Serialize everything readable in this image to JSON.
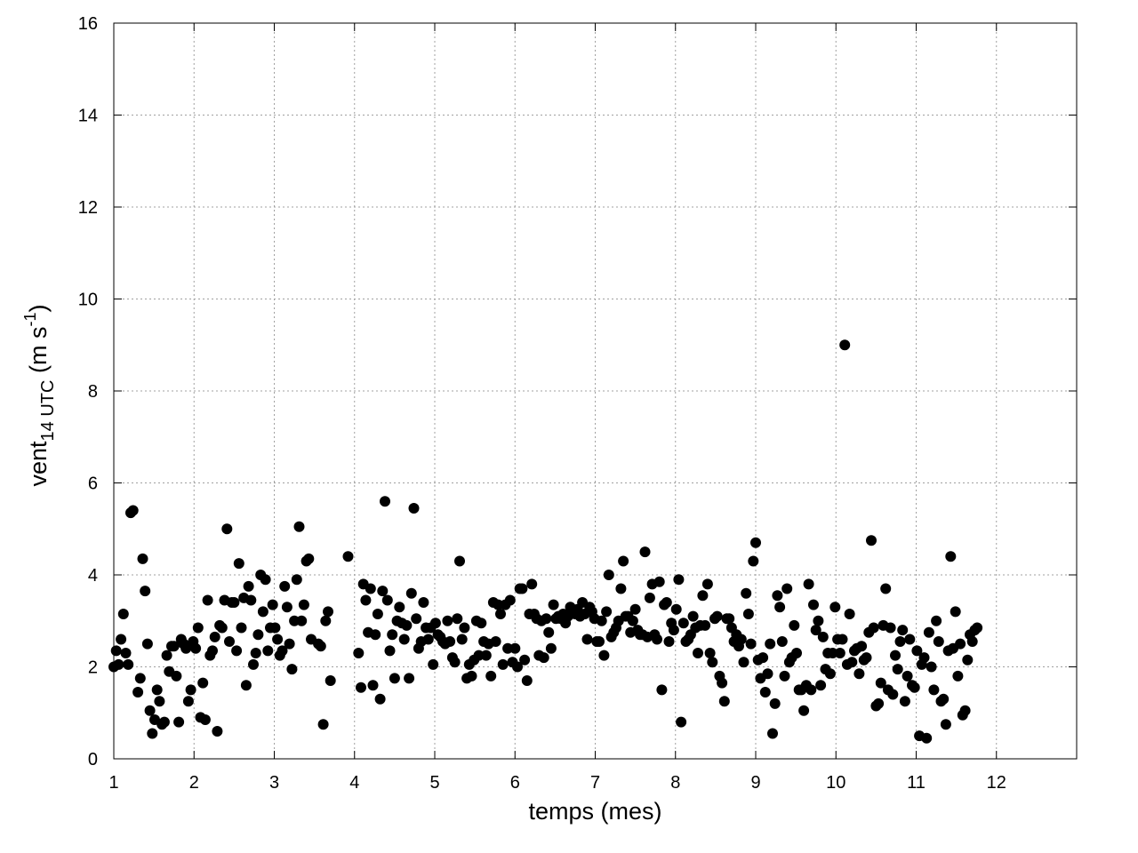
{
  "chart_data": {
    "type": "scatter",
    "title": "",
    "xlabel": "temps (mes)",
    "ylabel": {
      "base": "vent",
      "subscript": "14 UTC",
      "unit_open": " (m s",
      "unit_sup": "-1",
      "unit_close": ")"
    },
    "xlim": [
      1,
      13
    ],
    "ylim": [
      0,
      16
    ],
    "xticks": [
      1,
      2,
      3,
      4,
      5,
      6,
      7,
      8,
      9,
      10,
      11,
      12
    ],
    "yticks": [
      0,
      2,
      4,
      6,
      8,
      10,
      12,
      14,
      16
    ],
    "grid": true,
    "marker_color": "#000000",
    "points": [
      [
        1.0,
        2.0
      ],
      [
        1.03,
        2.35
      ],
      [
        1.06,
        2.05
      ],
      [
        1.09,
        2.6
      ],
      [
        1.12,
        3.15
      ],
      [
        1.15,
        2.3
      ],
      [
        1.18,
        2.05
      ],
      [
        1.21,
        5.35
      ],
      [
        1.24,
        5.4
      ],
      [
        1.3,
        1.45
      ],
      [
        1.33,
        1.75
      ],
      [
        1.36,
        4.35
      ],
      [
        1.39,
        3.65
      ],
      [
        1.42,
        2.5
      ],
      [
        1.45,
        1.05
      ],
      [
        1.48,
        0.55
      ],
      [
        1.51,
        0.85
      ],
      [
        1.54,
        1.5
      ],
      [
        1.57,
        1.25
      ],
      [
        1.6,
        0.75
      ],
      [
        1.63,
        0.8
      ],
      [
        1.66,
        2.25
      ],
      [
        1.69,
        1.9
      ],
      [
        1.72,
        2.45
      ],
      [
        1.75,
        2.45
      ],
      [
        1.78,
        1.8
      ],
      [
        1.81,
        0.8
      ],
      [
        1.84,
        2.6
      ],
      [
        1.87,
        2.5
      ],
      [
        1.9,
        2.4
      ],
      [
        1.93,
        1.25
      ],
      [
        1.96,
        1.5
      ],
      [
        1.99,
        2.55
      ],
      [
        2.02,
        2.4
      ],
      [
        2.05,
        2.85
      ],
      [
        2.08,
        0.9
      ],
      [
        2.11,
        1.65
      ],
      [
        2.14,
        0.85
      ],
      [
        2.17,
        3.45
      ],
      [
        2.2,
        2.25
      ],
      [
        2.23,
        2.35
      ],
      [
        2.26,
        2.65
      ],
      [
        2.29,
        0.6
      ],
      [
        2.32,
        2.9
      ],
      [
        2.35,
        2.85
      ],
      [
        2.38,
        3.45
      ],
      [
        2.41,
        5.0
      ],
      [
        2.44,
        2.55
      ],
      [
        2.47,
        3.4
      ],
      [
        2.5,
        3.4
      ],
      [
        2.53,
        2.35
      ],
      [
        2.56,
        4.25
      ],
      [
        2.59,
        2.85
      ],
      [
        2.62,
        3.5
      ],
      [
        2.65,
        1.6
      ],
      [
        2.68,
        3.75
      ],
      [
        2.71,
        3.45
      ],
      [
        2.74,
        2.05
      ],
      [
        2.77,
        2.3
      ],
      [
        2.8,
        2.7
      ],
      [
        2.83,
        4.0
      ],
      [
        2.86,
        3.2
      ],
      [
        2.89,
        3.9
      ],
      [
        2.92,
        2.35
      ],
      [
        2.95,
        2.85
      ],
      [
        2.98,
        3.35
      ],
      [
        3.01,
        2.85
      ],
      [
        3.04,
        2.6
      ],
      [
        3.07,
        2.25
      ],
      [
        3.1,
        2.35
      ],
      [
        3.13,
        3.75
      ],
      [
        3.16,
        3.3
      ],
      [
        3.19,
        2.5
      ],
      [
        3.22,
        1.95
      ],
      [
        3.25,
        3.0
      ],
      [
        3.28,
        3.9
      ],
      [
        3.31,
        5.05
      ],
      [
        3.34,
        3.0
      ],
      [
        3.37,
        3.35
      ],
      [
        3.4,
        4.3
      ],
      [
        3.43,
        4.35
      ],
      [
        3.46,
        2.6
      ],
      [
        3.55,
        2.5
      ],
      [
        3.58,
        2.45
      ],
      [
        3.61,
        0.75
      ],
      [
        3.64,
        3.0
      ],
      [
        3.67,
        3.2
      ],
      [
        3.7,
        1.7
      ],
      [
        3.92,
        4.4
      ],
      [
        4.05,
        2.3
      ],
      [
        4.08,
        1.55
      ],
      [
        4.11,
        3.8
      ],
      [
        4.14,
        3.45
      ],
      [
        4.17,
        2.75
      ],
      [
        4.2,
        3.7
      ],
      [
        4.23,
        1.6
      ],
      [
        4.26,
        2.7
      ],
      [
        4.29,
        3.15
      ],
      [
        4.32,
        1.3
      ],
      [
        4.35,
        3.65
      ],
      [
        4.38,
        5.6
      ],
      [
        4.41,
        3.45
      ],
      [
        4.44,
        2.35
      ],
      [
        4.47,
        2.7
      ],
      [
        4.5,
        1.75
      ],
      [
        4.53,
        3.0
      ],
      [
        4.56,
        3.3
      ],
      [
        4.59,
        2.95
      ],
      [
        4.62,
        2.6
      ],
      [
        4.65,
        2.9
      ],
      [
        4.68,
        1.75
      ],
      [
        4.71,
        3.6
      ],
      [
        4.74,
        5.45
      ],
      [
        4.77,
        3.05
      ],
      [
        4.8,
        2.4
      ],
      [
        4.83,
        2.55
      ],
      [
        4.86,
        3.4
      ],
      [
        4.89,
        2.85
      ],
      [
        4.92,
        2.6
      ],
      [
        4.95,
        2.85
      ],
      [
        4.98,
        2.05
      ],
      [
        5.01,
        2.95
      ],
      [
        5.04,
        2.7
      ],
      [
        5.07,
        2.65
      ],
      [
        5.1,
        2.55
      ],
      [
        5.13,
        2.5
      ],
      [
        5.16,
        3.0
      ],
      [
        5.19,
        2.55
      ],
      [
        5.22,
        2.2
      ],
      [
        5.25,
        2.1
      ],
      [
        5.28,
        3.05
      ],
      [
        5.31,
        4.3
      ],
      [
        5.34,
        2.6
      ],
      [
        5.37,
        2.85
      ],
      [
        5.4,
        1.75
      ],
      [
        5.43,
        2.05
      ],
      [
        5.46,
        1.8
      ],
      [
        5.49,
        2.15
      ],
      [
        5.52,
        3.0
      ],
      [
        5.55,
        2.25
      ],
      [
        5.58,
        2.95
      ],
      [
        5.61,
        2.55
      ],
      [
        5.64,
        2.25
      ],
      [
        5.67,
        2.5
      ],
      [
        5.7,
        1.8
      ],
      [
        5.73,
        3.4
      ],
      [
        5.76,
        2.55
      ],
      [
        5.79,
        3.35
      ],
      [
        5.82,
        3.15
      ],
      [
        5.85,
        2.05
      ],
      [
        5.88,
        3.35
      ],
      [
        5.91,
        2.4
      ],
      [
        5.94,
        3.45
      ],
      [
        5.97,
        2.1
      ],
      [
        6.0,
        2.4
      ],
      [
        6.03,
        2.0
      ],
      [
        6.06,
        3.7
      ],
      [
        6.09,
        3.7
      ],
      [
        6.12,
        2.15
      ],
      [
        6.15,
        1.7
      ],
      [
        6.18,
        3.15
      ],
      [
        6.21,
        3.8
      ],
      [
        6.24,
        3.15
      ],
      [
        6.27,
        3.05
      ],
      [
        6.3,
        2.25
      ],
      [
        6.33,
        3.0
      ],
      [
        6.36,
        2.2
      ],
      [
        6.39,
        3.05
      ],
      [
        6.42,
        2.75
      ],
      [
        6.45,
        2.4
      ],
      [
        6.48,
        3.35
      ],
      [
        6.51,
        3.05
      ],
      [
        6.54,
        3.1
      ],
      [
        6.57,
        3.05
      ],
      [
        6.6,
        3.15
      ],
      [
        6.63,
        2.95
      ],
      [
        6.66,
        3.1
      ],
      [
        6.69,
        3.3
      ],
      [
        6.72,
        3.25
      ],
      [
        6.75,
        3.15
      ],
      [
        6.78,
        3.25
      ],
      [
        6.81,
        3.1
      ],
      [
        6.84,
        3.4
      ],
      [
        6.87,
        3.15
      ],
      [
        6.9,
        2.6
      ],
      [
        6.93,
        3.3
      ],
      [
        6.96,
        3.2
      ],
      [
        6.99,
        3.05
      ],
      [
        7.02,
        2.55
      ],
      [
        7.05,
        2.55
      ],
      [
        7.08,
        3.0
      ],
      [
        7.11,
        2.25
      ],
      [
        7.14,
        3.2
      ],
      [
        7.17,
        4.0
      ],
      [
        7.2,
        2.65
      ],
      [
        7.23,
        2.75
      ],
      [
        7.26,
        2.85
      ],
      [
        7.29,
        3.0
      ],
      [
        7.32,
        3.7
      ],
      [
        7.35,
        4.3
      ],
      [
        7.38,
        3.1
      ],
      [
        7.41,
        3.1
      ],
      [
        7.44,
        2.75
      ],
      [
        7.47,
        3.0
      ],
      [
        7.5,
        3.25
      ],
      [
        7.53,
        2.8
      ],
      [
        7.56,
        2.7
      ],
      [
        7.59,
        2.7
      ],
      [
        7.62,
        4.5
      ],
      [
        7.65,
        2.65
      ],
      [
        7.68,
        3.5
      ],
      [
        7.71,
        3.8
      ],
      [
        7.74,
        2.7
      ],
      [
        7.77,
        2.6
      ],
      [
        7.8,
        3.85
      ],
      [
        7.83,
        1.5
      ],
      [
        7.86,
        3.35
      ],
      [
        7.89,
        3.4
      ],
      [
        7.92,
        2.55
      ],
      [
        7.95,
        2.95
      ],
      [
        7.98,
        2.8
      ],
      [
        8.01,
        3.25
      ],
      [
        8.04,
        3.9
      ],
      [
        8.07,
        0.8
      ],
      [
        8.1,
        2.95
      ],
      [
        8.13,
        2.55
      ],
      [
        8.16,
        2.6
      ],
      [
        8.19,
        2.7
      ],
      [
        8.22,
        3.1
      ],
      [
        8.25,
        2.85
      ],
      [
        8.28,
        2.3
      ],
      [
        8.31,
        2.9
      ],
      [
        8.34,
        3.55
      ],
      [
        8.37,
        2.9
      ],
      [
        8.4,
        3.8
      ],
      [
        8.43,
        2.3
      ],
      [
        8.46,
        2.1
      ],
      [
        8.49,
        3.05
      ],
      [
        8.52,
        3.1
      ],
      [
        8.55,
        1.8
      ],
      [
        8.58,
        1.65
      ],
      [
        8.61,
        1.25
      ],
      [
        8.64,
        3.05
      ],
      [
        8.67,
        3.05
      ],
      [
        8.7,
        2.85
      ],
      [
        8.73,
        2.55
      ],
      [
        8.76,
        2.7
      ],
      [
        8.79,
        2.45
      ],
      [
        8.82,
        2.6
      ],
      [
        8.85,
        2.1
      ],
      [
        8.88,
        3.6
      ],
      [
        8.91,
        3.15
      ],
      [
        8.94,
        2.5
      ],
      [
        8.97,
        4.3
      ],
      [
        9.0,
        4.7
      ],
      [
        9.03,
        2.15
      ],
      [
        9.06,
        1.75
      ],
      [
        9.09,
        2.2
      ],
      [
        9.12,
        1.45
      ],
      [
        9.15,
        1.85
      ],
      [
        9.18,
        2.5
      ],
      [
        9.21,
        0.55
      ],
      [
        9.24,
        1.2
      ],
      [
        9.27,
        3.55
      ],
      [
        9.3,
        3.3
      ],
      [
        9.33,
        2.55
      ],
      [
        9.36,
        1.8
      ],
      [
        9.39,
        3.7
      ],
      [
        9.42,
        2.1
      ],
      [
        9.45,
        2.2
      ],
      [
        9.48,
        2.9
      ],
      [
        9.51,
        2.3
      ],
      [
        9.54,
        1.5
      ],
      [
        9.57,
        1.5
      ],
      [
        9.6,
        1.05
      ],
      [
        9.63,
        1.6
      ],
      [
        9.66,
        3.8
      ],
      [
        9.69,
        1.5
      ],
      [
        9.72,
        3.35
      ],
      [
        9.75,
        2.8
      ],
      [
        9.78,
        3.0
      ],
      [
        9.81,
        1.6
      ],
      [
        9.84,
        2.65
      ],
      [
        9.87,
        1.95
      ],
      [
        9.9,
        2.3
      ],
      [
        9.93,
        1.85
      ],
      [
        9.96,
        2.3
      ],
      [
        9.99,
        3.3
      ],
      [
        10.02,
        2.6
      ],
      [
        10.05,
        2.3
      ],
      [
        10.08,
        2.6
      ],
      [
        10.11,
        9.0
      ],
      [
        10.14,
        2.05
      ],
      [
        10.17,
        3.15
      ],
      [
        10.2,
        2.1
      ],
      [
        10.23,
        2.35
      ],
      [
        10.26,
        2.4
      ],
      [
        10.29,
        1.85
      ],
      [
        10.32,
        2.45
      ],
      [
        10.35,
        2.15
      ],
      [
        10.38,
        2.2
      ],
      [
        10.41,
        2.75
      ],
      [
        10.44,
        4.75
      ],
      [
        10.47,
        2.85
      ],
      [
        10.5,
        1.15
      ],
      [
        10.53,
        1.2
      ],
      [
        10.56,
        1.65
      ],
      [
        10.59,
        2.9
      ],
      [
        10.62,
        3.7
      ],
      [
        10.65,
        1.5
      ],
      [
        10.68,
        2.85
      ],
      [
        10.71,
        1.4
      ],
      [
        10.74,
        2.25
      ],
      [
        10.77,
        1.95
      ],
      [
        10.8,
        2.55
      ],
      [
        10.83,
        2.8
      ],
      [
        10.86,
        1.25
      ],
      [
        10.89,
        1.8
      ],
      [
        10.92,
        2.6
      ],
      [
        10.95,
        1.6
      ],
      [
        10.98,
        1.55
      ],
      [
        11.01,
        2.35
      ],
      [
        11.04,
        0.5
      ],
      [
        11.07,
        2.05
      ],
      [
        11.1,
        2.2
      ],
      [
        11.13,
        0.45
      ],
      [
        11.16,
        2.75
      ],
      [
        11.19,
        2.0
      ],
      [
        11.22,
        1.5
      ],
      [
        11.25,
        3.0
      ],
      [
        11.28,
        2.55
      ],
      [
        11.31,
        1.25
      ],
      [
        11.34,
        1.3
      ],
      [
        11.37,
        0.75
      ],
      [
        11.4,
        2.35
      ],
      [
        11.43,
        4.4
      ],
      [
        11.46,
        2.4
      ],
      [
        11.49,
        3.2
      ],
      [
        11.52,
        1.8
      ],
      [
        11.55,
        2.5
      ],
      [
        11.58,
        0.95
      ],
      [
        11.61,
        1.05
      ],
      [
        11.64,
        2.15
      ],
      [
        11.67,
        2.7
      ],
      [
        11.7,
        2.55
      ],
      [
        11.73,
        2.8
      ],
      [
        11.76,
        2.85
      ]
    ]
  }
}
